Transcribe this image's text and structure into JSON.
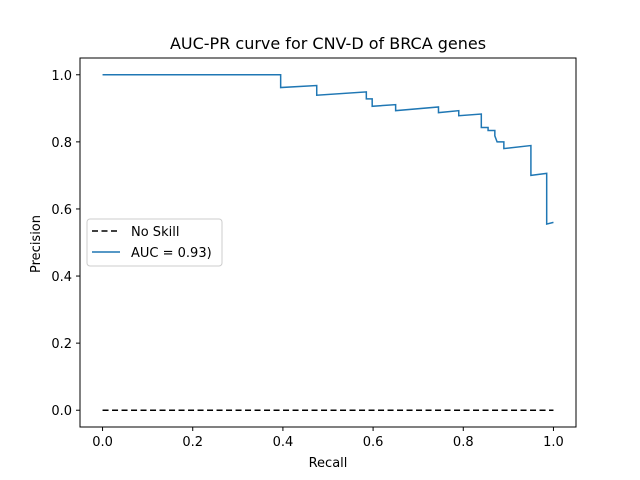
{
  "chart_data": {
    "type": "line",
    "title": "AUC-PR curve for CNV-D of BRCA genes",
    "xlabel": "Recall",
    "ylabel": "Precision",
    "xlim": [
      -0.05,
      1.05
    ],
    "ylim": [
      -0.05,
      1.05
    ],
    "xticks": [
      0.0,
      0.2,
      0.4,
      0.6,
      0.8,
      1.0
    ],
    "yticks": [
      0.0,
      0.2,
      0.4,
      0.6,
      0.8,
      1.0
    ],
    "tick_labels": {
      "x": [
        "0.0",
        "0.2",
        "0.4",
        "0.6",
        "0.8",
        "1.0"
      ],
      "y": [
        "0.0",
        "0.2",
        "0.4",
        "0.6",
        "0.8",
        "1.0"
      ]
    },
    "grid": false,
    "legend_position": "center-left",
    "series": [
      {
        "name": "No Skill",
        "style": "dashed",
        "color": "#000000",
        "x": [
          0.0,
          1.0
        ],
        "y": [
          0.0,
          0.0
        ]
      },
      {
        "name": "AUC = 0.93)",
        "style": "solid",
        "color": "#1f77b4",
        "x": [
          0.0,
          0.395,
          0.395,
          0.475,
          0.475,
          0.585,
          0.585,
          0.598,
          0.598,
          0.65,
          0.65,
          0.745,
          0.745,
          0.79,
          0.79,
          0.84,
          0.84,
          0.855,
          0.855,
          0.87,
          0.87,
          0.875,
          0.875,
          0.89,
          0.89,
          0.95,
          0.95,
          0.985,
          0.985,
          1.0
        ],
        "y": [
          1.0,
          1.0,
          0.962,
          0.968,
          0.939,
          0.949,
          0.928,
          0.928,
          0.906,
          0.911,
          0.893,
          0.904,
          0.887,
          0.893,
          0.878,
          0.883,
          0.843,
          0.843,
          0.834,
          0.834,
          0.818,
          0.8,
          0.8,
          0.8,
          0.78,
          0.789,
          0.7,
          0.706,
          0.555,
          0.56
        ]
      }
    ]
  }
}
